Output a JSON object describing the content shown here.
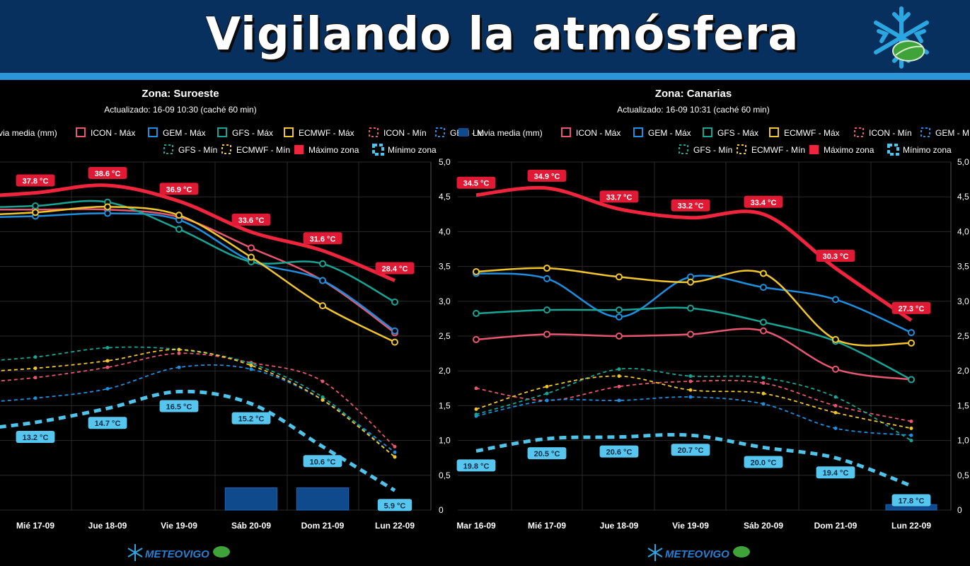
{
  "header": {
    "title": "Vigilando la atmósfera"
  },
  "colors": {
    "icon": "#e8576f",
    "gem": "#1d8fe0",
    "gfs": "#17a596",
    "ecmwf": "#f2c62b",
    "max_zone": "#f0243d",
    "min_zone": "#4fc3ea",
    "rain": "#0f4a8c",
    "header_bg": "#07305e",
    "header_rule": "#2b96d8"
  },
  "legend": {
    "rain": "Lluvia media (mm)",
    "icon_max": "ICON - Máx",
    "gem_max": "GEM - Máx",
    "gfs_max": "GFS - Máx",
    "ecmwf_max": "ECMWF - Máx",
    "icon_min": "ICON - Mín",
    "gem_min": "GEM - Mín",
    "gfs_min": "GFS - Mín",
    "ecmwf_min": "ECMWF - Mín",
    "max_zone": "Máximo zona",
    "min_zone": "Mínimo zona"
  },
  "footer": {
    "brand": "METEOVIGO"
  },
  "chart_data": [
    {
      "type": "line",
      "title": "Zona: Suroeste",
      "subtitle": "Actualizado: 16-09 10:30 (caché 60 min)",
      "categories": [
        "Mié 17-09",
        "Jue 18-09",
        "Vie 19-09",
        "Sáb 20-09",
        "Dom 21-09",
        "Lun 22-09"
      ],
      "y_right_ticks": [
        "0",
        "0,5",
        "1,0",
        "1,5",
        "2,0",
        "2,5",
        "3,0",
        "3,5",
        "4,0",
        "4,5",
        "5,0"
      ],
      "y_right_range": [
        0,
        5
      ],
      "temp_range": [
        3.8,
        41.1
      ],
      "rain": [
        0,
        0,
        0,
        0.32,
        0.32,
        0
      ],
      "series": [
        {
          "name": "ICON - Máx",
          "key": "icon",
          "style": "solid",
          "values": [
            36.0,
            36.0,
            35.2,
            31.9,
            28.4,
            22.8
          ]
        },
        {
          "name": "GEM - Máx",
          "key": "gem",
          "style": "solid",
          "values": [
            35.3,
            35.6,
            34.9,
            30.5,
            28.4,
            23.0
          ]
        },
        {
          "name": "GFS - Máx",
          "key": "gfs",
          "style": "solid",
          "values": [
            36.4,
            36.8,
            33.9,
            30.4,
            30.2,
            26.1
          ]
        },
        {
          "name": "ECMWF - Máx",
          "key": "ecmwf",
          "style": "solid",
          "values": [
            35.7,
            36.3,
            35.4,
            30.9,
            25.7,
            21.8
          ]
        },
        {
          "name": "ICON - Mín",
          "key": "icon",
          "style": "dashed",
          "values": [
            18.0,
            19.1,
            20.6,
            19.6,
            17.6,
            10.6
          ]
        },
        {
          "name": "GEM - Mín",
          "key": "gem",
          "style": "dashed",
          "values": [
            15.8,
            16.8,
            19.1,
            18.9,
            15.6,
            10.0
          ]
        },
        {
          "name": "GFS - Mín",
          "key": "gfs",
          "style": "dashed",
          "values": [
            20.2,
            21.2,
            21.0,
            19.5,
            15.9,
            9.5
          ]
        },
        {
          "name": "ECMWF - Mín",
          "key": "ecmwf",
          "style": "dashed",
          "values": [
            19.0,
            19.8,
            21.0,
            19.3,
            15.6,
            9.5
          ]
        },
        {
          "name": "Máximo zona",
          "key": "max_zone",
          "style": "thick",
          "values": [
            37.8,
            38.6,
            36.9,
            33.6,
            31.6,
            28.4
          ],
          "labels": [
            "37.8 °C",
            "38.6 °C",
            "36.9 °C",
            "33.6 °C",
            "31.6 °C",
            "28.4 °C"
          ]
        },
        {
          "name": "Mínimo zona",
          "key": "min_zone",
          "style": "thickdash",
          "values": [
            13.2,
            14.7,
            16.5,
            15.2,
            10.6,
            5.9
          ],
          "labels": [
            "13.2 °C",
            "14.7 °C",
            "16.5 °C",
            "15.2 °C",
            "10.6 °C",
            "5.9 °C"
          ]
        }
      ]
    },
    {
      "type": "line",
      "title": "Zona: Canarias",
      "subtitle": "Actualizado: 16-09 10:31 (caché 60 min)",
      "categories": [
        "Mar 16-09",
        "Mié 17-09",
        "Jue 18-09",
        "Vie 19-09",
        "Sáb 20-09",
        "Dom 21-09",
        "Lun 22-09"
      ],
      "y_right_ticks": [
        "0",
        "0,5",
        "1,0",
        "1,5",
        "2,0",
        "2,5",
        "3,0",
        "3,5",
        "4,0",
        "4,5",
        "5,0"
      ],
      "y_right_range": [
        0,
        5
      ],
      "temp_range": [
        16.4,
        36.4
      ],
      "rain": [
        0,
        0,
        0,
        0,
        0,
        0,
        0.08
      ],
      "series": [
        {
          "name": "ICON - Máx",
          "key": "icon",
          "style": "solid",
          "values": [
            26.2,
            26.5,
            26.4,
            26.5,
            26.7,
            24.5,
            23.9
          ]
        },
        {
          "name": "GEM - Máx",
          "key": "gem",
          "style": "solid",
          "values": [
            30.0,
            29.7,
            27.5,
            29.8,
            29.2,
            28.5,
            26.6
          ]
        },
        {
          "name": "GFS - Máx",
          "key": "gfs",
          "style": "solid",
          "values": [
            27.7,
            27.9,
            27.9,
            28.0,
            27.2,
            26.1,
            23.9
          ]
        },
        {
          "name": "ECMWF - Máx",
          "key": "ecmwf",
          "style": "solid",
          "values": [
            30.1,
            30.3,
            29.8,
            29.5,
            30.0,
            26.2,
            26.0
          ]
        },
        {
          "name": "ICON - Mín",
          "key": "icon",
          "style": "dashed",
          "values": [
            23.4,
            22.7,
            23.5,
            23.8,
            23.7,
            22.4,
            21.5
          ]
        },
        {
          "name": "GEM - Mín",
          "key": "gem",
          "style": "dashed",
          "values": [
            21.8,
            22.7,
            22.7,
            22.9,
            22.5,
            21.1,
            20.7
          ]
        },
        {
          "name": "GFS - Mín",
          "key": "gfs",
          "style": "dashed",
          "values": [
            21.9,
            23.1,
            24.5,
            24.1,
            24.0,
            22.9,
            20.4
          ]
        },
        {
          "name": "ECMWF - Mín",
          "key": "ecmwf",
          "style": "dashed",
          "values": [
            22.2,
            23.5,
            24.1,
            23.3,
            23.1,
            22.0,
            21.1
          ]
        },
        {
          "name": "Máximo zona",
          "key": "max_zone",
          "style": "thick",
          "values": [
            34.5,
            34.9,
            33.7,
            33.2,
            33.4,
            30.3,
            27.3
          ],
          "labels": [
            "34.5 °C",
            "34.9 °C",
            "33.7 °C",
            "33.2 °C",
            "33.4 °C",
            "30.3 °C",
            "27.3 °C"
          ]
        },
        {
          "name": "Mínimo zona",
          "key": "min_zone",
          "style": "thickdash",
          "values": [
            19.8,
            20.5,
            20.6,
            20.7,
            20.0,
            19.4,
            17.8
          ],
          "labels": [
            "19.8 °C",
            "20.5 °C",
            "20.6 °C",
            "20.7 °C",
            "20.0 °C",
            "19.4 °C",
            "17.8 °C"
          ]
        }
      ]
    }
  ]
}
